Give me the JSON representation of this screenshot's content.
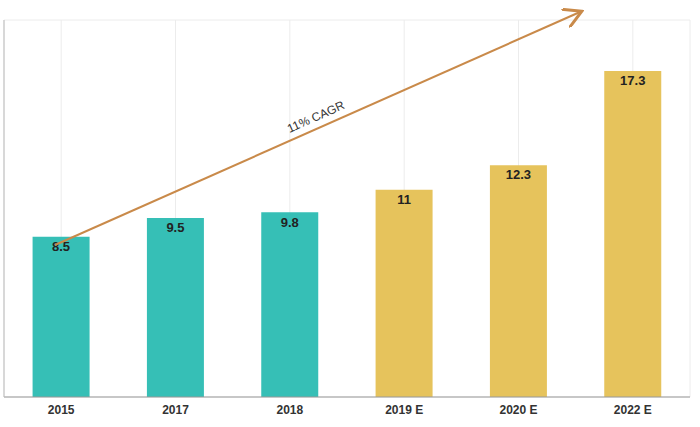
{
  "chart_data": {
    "type": "bar",
    "categories": [
      "2015",
      "2017",
      "2018",
      "2019 E",
      "2020 E",
      "2022 E"
    ],
    "values": [
      8.5,
      9.5,
      9.8,
      11.0,
      12.3,
      17.3
    ],
    "colors": [
      "#36bfb6",
      "#36bfb6",
      "#36bfb6",
      "#e6c35c",
      "#e6c35c",
      "#e6c35c"
    ],
    "ylim": [
      0,
      20
    ],
    "yticks": [
      0,
      5,
      10,
      15,
      20
    ],
    "grid": true,
    "data_labels": true,
    "tick_labels": "x",
    "annotation": "11% CAGR"
  }
}
